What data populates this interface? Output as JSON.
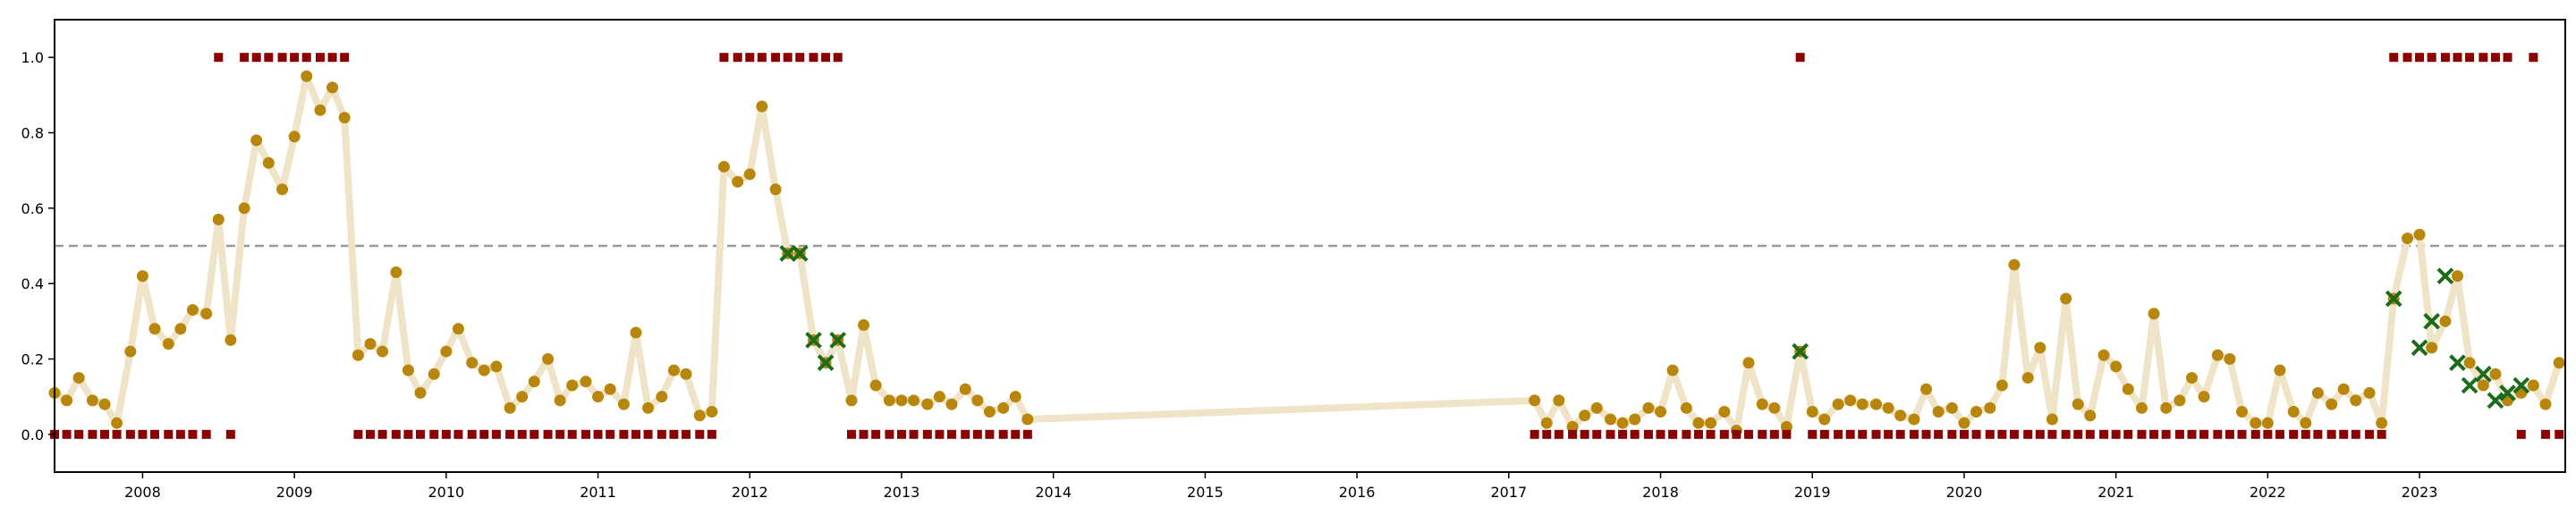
{
  "chart_data": {
    "type": "line",
    "title": "",
    "xlabel": "",
    "ylabel": "",
    "xlim": [
      2007.42,
      2023.96
    ],
    "ylim": [
      -0.1,
      1.1
    ],
    "x_ticks": [
      2008,
      2009,
      2010,
      2011,
      2012,
      2013,
      2014,
      2015,
      2016,
      2017,
      2018,
      2019,
      2020,
      2021,
      2022,
      2023
    ],
    "x_tick_labels": [
      "2008",
      "2009",
      "2010",
      "2011",
      "2012",
      "2013",
      "2014",
      "2015",
      "2016",
      "2017",
      "2018",
      "2019",
      "2020",
      "2021",
      "2022",
      "2023"
    ],
    "y_ticks": [
      0.0,
      0.2,
      0.4,
      0.6,
      0.8,
      1.0
    ],
    "y_tick_labels": [
      "0.0",
      "0.2",
      "0.4",
      "0.6",
      "0.8",
      "1.0"
    ],
    "threshold": 0.5,
    "grid": false,
    "legend": "none",
    "colors": {
      "trend_line": "#f0e4c8",
      "points": "#b8860b",
      "flags": "#8b0000",
      "crosses": "#1a6b1a",
      "threshold": "#999999"
    },
    "series": [
      {
        "marker": "circle",
        "x": [
          2007.42,
          2007.5,
          2007.58,
          2007.67,
          2007.75,
          2007.83,
          2007.92,
          2008.0,
          2008.08,
          2008.17,
          2008.25,
          2008.33,
          2008.42,
          2008.5,
          2008.58,
          2008.67,
          2008.75,
          2008.83,
          2008.92,
          2009.0,
          2009.08,
          2009.17,
          2009.25,
          2009.33,
          2009.42,
          2009.5,
          2009.58,
          2009.67,
          2009.75,
          2009.83,
          2009.92,
          2010.0,
          2010.08,
          2010.17,
          2010.25,
          2010.33,
          2010.42,
          2010.5,
          2010.58,
          2010.67,
          2010.75,
          2010.83,
          2010.92,
          2011.0,
          2011.08,
          2011.17,
          2011.25,
          2011.33,
          2011.42,
          2011.5,
          2011.58,
          2011.67,
          2011.75,
          2011.83,
          2011.92,
          2012.0,
          2012.08,
          2012.17,
          2012.25,
          2012.33,
          2012.42,
          2012.5,
          2012.58,
          2012.67,
          2012.75,
          2012.83,
          2012.92,
          2013.0,
          2013.08,
          2013.17,
          2013.25,
          2013.33,
          2013.42,
          2013.5,
          2013.58,
          2013.67,
          2013.75,
          2013.83,
          2017.17,
          2017.25,
          2017.33,
          2017.42,
          2017.5,
          2017.58,
          2017.67,
          2017.75,
          2017.83,
          2017.92,
          2018.0,
          2018.08,
          2018.17,
          2018.25,
          2018.33,
          2018.42,
          2018.5,
          2018.58,
          2018.67,
          2018.75,
          2018.83,
          2018.92,
          2019.0,
          2019.08,
          2019.17,
          2019.25,
          2019.33,
          2019.42,
          2019.5,
          2019.58,
          2019.67,
          2019.75,
          2019.83,
          2019.92,
          2020.0,
          2020.08,
          2020.17,
          2020.25,
          2020.33,
          2020.42,
          2020.5,
          2020.58,
          2020.67,
          2020.75,
          2020.83,
          2020.92,
          2021.0,
          2021.08,
          2021.17,
          2021.25,
          2021.33,
          2021.42,
          2021.5,
          2021.58,
          2021.67,
          2021.75,
          2021.83,
          2021.92,
          2022.0,
          2022.08,
          2022.17,
          2022.25,
          2022.33,
          2022.42,
          2022.5,
          2022.58,
          2022.67,
          2022.75,
          2022.83,
          2022.92,
          2023.0,
          2023.08,
          2023.17,
          2023.25,
          2023.33,
          2023.42,
          2023.5,
          2023.58,
          2023.67,
          2023.75,
          2023.83,
          2023.92
        ],
        "y": [
          0.11,
          0.09,
          0.15,
          0.09,
          0.08,
          0.03,
          0.22,
          0.42,
          0.28,
          0.24,
          0.28,
          0.33,
          0.32,
          0.57,
          0.25,
          0.6,
          0.78,
          0.72,
          0.65,
          0.79,
          0.95,
          0.86,
          0.92,
          0.84,
          0.21,
          0.24,
          0.22,
          0.43,
          0.17,
          0.11,
          0.16,
          0.22,
          0.28,
          0.19,
          0.17,
          0.18,
          0.07,
          0.1,
          0.14,
          0.2,
          0.09,
          0.13,
          0.14,
          0.1,
          0.12,
          0.08,
          0.27,
          0.07,
          0.1,
          0.17,
          0.16,
          0.05,
          0.06,
          0.71,
          0.67,
          0.69,
          0.87,
          0.65,
          0.48,
          0.48,
          0.25,
          0.19,
          0.25,
          0.09,
          0.29,
          0.13,
          0.09,
          0.09,
          0.09,
          0.08,
          0.1,
          0.08,
          0.12,
          0.09,
          0.06,
          0.07,
          0.1,
          0.04,
          0.09,
          0.03,
          0.09,
          0.02,
          0.05,
          0.07,
          0.04,
          0.03,
          0.04,
          0.07,
          0.06,
          0.17,
          0.07,
          0.03,
          0.03,
          0.06,
          0.01,
          0.19,
          0.08,
          0.07,
          0.02,
          0.22,
          0.06,
          0.04,
          0.08,
          0.09,
          0.08,
          0.08,
          0.07,
          0.05,
          0.04,
          0.12,
          0.06,
          0.07,
          0.03,
          0.06,
          0.07,
          0.13,
          0.45,
          0.15,
          0.23,
          0.04,
          0.36,
          0.08,
          0.05,
          0.21,
          0.18,
          0.12,
          0.07,
          0.32,
          0.07,
          0.09,
          0.15,
          0.1,
          0.21,
          0.2,
          0.06,
          0.03,
          0.03,
          0.17,
          0.06,
          0.03,
          0.11,
          0.08,
          0.12,
          0.09,
          0.11,
          0.03,
          0.36,
          0.52,
          0.53,
          0.23,
          0.3,
          0.42,
          0.19,
          0.13,
          0.16,
          0.09,
          0.11,
          0.13,
          0.08,
          0.19
        ]
      },
      {
        "marker": "cross",
        "x": [
          2012.25,
          2012.33,
          2012.42,
          2012.5,
          2012.58,
          2018.92,
          2022.83,
          2023.0,
          2023.08,
          2023.17,
          2023.25,
          2023.33,
          2023.42,
          2023.5,
          2023.58,
          2023.67
        ],
        "y": [
          0.48,
          0.48,
          0.25,
          0.19,
          0.25,
          0.22,
          0.36,
          0.23,
          0.3,
          0.42,
          0.19,
          0.13,
          0.16,
          0.09,
          0.11,
          0.13
        ]
      },
      {
        "marker": "square",
        "x": [
          2007.42,
          2007.5,
          2007.58,
          2007.67,
          2007.75,
          2007.83,
          2007.92,
          2008.0,
          2008.08,
          2008.17,
          2008.25,
          2008.33,
          2008.42,
          2008.5,
          2008.58,
          2008.67,
          2008.75,
          2008.83,
          2008.92,
          2009.0,
          2009.08,
          2009.17,
          2009.25,
          2009.33,
          2009.42,
          2009.5,
          2009.58,
          2009.67,
          2009.75,
          2009.83,
          2009.92,
          2010.0,
          2010.08,
          2010.17,
          2010.25,
          2010.33,
          2010.42,
          2010.5,
          2010.58,
          2010.67,
          2010.75,
          2010.83,
          2010.92,
          2011.0,
          2011.08,
          2011.17,
          2011.25,
          2011.33,
          2011.42,
          2011.5,
          2011.58,
          2011.67,
          2011.75,
          2011.83,
          2011.92,
          2012.0,
          2012.08,
          2012.17,
          2012.25,
          2012.33,
          2012.42,
          2012.5,
          2012.58,
          2012.67,
          2012.75,
          2012.83,
          2012.92,
          2013.0,
          2013.08,
          2013.17,
          2013.25,
          2013.33,
          2013.42,
          2013.5,
          2013.58,
          2013.67,
          2013.75,
          2013.83,
          2017.17,
          2017.25,
          2017.33,
          2017.42,
          2017.5,
          2017.58,
          2017.67,
          2017.75,
          2017.83,
          2017.92,
          2018.0,
          2018.08,
          2018.17,
          2018.25,
          2018.33,
          2018.42,
          2018.5,
          2018.58,
          2018.67,
          2018.75,
          2018.83,
          2018.92,
          2019.0,
          2019.08,
          2019.17,
          2019.25,
          2019.33,
          2019.42,
          2019.5,
          2019.58,
          2019.67,
          2019.75,
          2019.83,
          2019.92,
          2020.0,
          2020.08,
          2020.17,
          2020.25,
          2020.33,
          2020.42,
          2020.5,
          2020.58,
          2020.67,
          2020.75,
          2020.83,
          2020.92,
          2021.0,
          2021.08,
          2021.17,
          2021.25,
          2021.33,
          2021.42,
          2021.5,
          2021.58,
          2021.67,
          2021.75,
          2021.83,
          2021.92,
          2022.0,
          2022.08,
          2022.17,
          2022.25,
          2022.33,
          2022.42,
          2022.5,
          2022.58,
          2022.67,
          2022.75,
          2022.83,
          2022.92,
          2023.0,
          2023.08,
          2023.17,
          2023.25,
          2023.33,
          2023.42,
          2023.5,
          2023.58,
          2023.67,
          2023.75,
          2023.83,
          2023.92
        ],
        "y": [
          0,
          0,
          0,
          0,
          0,
          0,
          0,
          0,
          0,
          0,
          0,
          0,
          0,
          1,
          0,
          1,
          1,
          1,
          1,
          1,
          1,
          1,
          1,
          1,
          0,
          0,
          0,
          0,
          0,
          0,
          0,
          0,
          0,
          0,
          0,
          0,
          0,
          0,
          0,
          0,
          0,
          0,
          0,
          0,
          0,
          0,
          0,
          0,
          0,
          0,
          0,
          0,
          0,
          1,
          1,
          1,
          1,
          1,
          1,
          1,
          1,
          1,
          1,
          0,
          0,
          0,
          0,
          0,
          0,
          0,
          0,
          0,
          0,
          0,
          0,
          0,
          0,
          0,
          0,
          0,
          0,
          0,
          0,
          0,
          0,
          0,
          0,
          0,
          0,
          0,
          0,
          0,
          0,
          0,
          0,
          0,
          0,
          0,
          0,
          1,
          0,
          0,
          0,
          0,
          0,
          0,
          0,
          0,
          0,
          0,
          0,
          0,
          0,
          0,
          0,
          0,
          0,
          0,
          0,
          0,
          0,
          0,
          0,
          0,
          0,
          0,
          0,
          0,
          0,
          0,
          0,
          0,
          0,
          0,
          0,
          0,
          0,
          0,
          0,
          0,
          0,
          0,
          0,
          0,
          0,
          0,
          1,
          1,
          1,
          1,
          1,
          1,
          1,
          1,
          1,
          1,
          0,
          1,
          0,
          0
        ]
      }
    ]
  }
}
